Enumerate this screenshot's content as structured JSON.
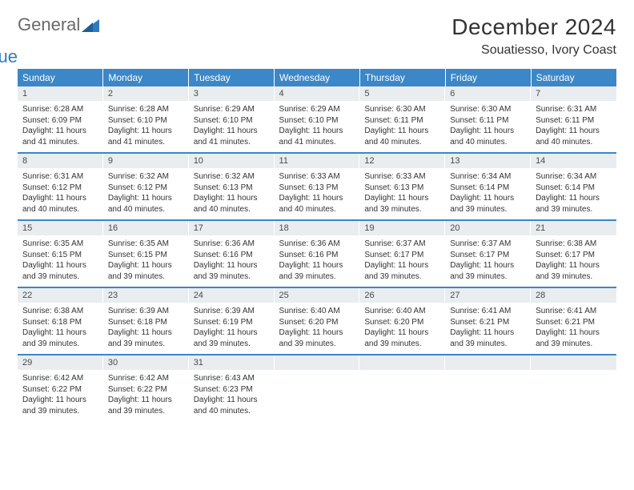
{
  "logo": {
    "word1": "General",
    "word2": "Blue",
    "tri_color": "#2f7bbf",
    "text1_color": "#6a6a6a"
  },
  "title": "December 2024",
  "location": "Souatiesso, Ivory Coast",
  "colors": {
    "header_bg": "#3b87c8",
    "header_fg": "#ffffff",
    "daynum_bg": "#e9edf0",
    "rule": "#3b87c8"
  },
  "weekdays": [
    "Sunday",
    "Monday",
    "Tuesday",
    "Wednesday",
    "Thursday",
    "Friday",
    "Saturday"
  ],
  "weeks": [
    [
      {
        "n": "1",
        "sr": "Sunrise: 6:28 AM",
        "ss": "Sunset: 6:09 PM",
        "d1": "Daylight: 11 hours",
        "d2": "and 41 minutes."
      },
      {
        "n": "2",
        "sr": "Sunrise: 6:28 AM",
        "ss": "Sunset: 6:10 PM",
        "d1": "Daylight: 11 hours",
        "d2": "and 41 minutes."
      },
      {
        "n": "3",
        "sr": "Sunrise: 6:29 AM",
        "ss": "Sunset: 6:10 PM",
        "d1": "Daylight: 11 hours",
        "d2": "and 41 minutes."
      },
      {
        "n": "4",
        "sr": "Sunrise: 6:29 AM",
        "ss": "Sunset: 6:10 PM",
        "d1": "Daylight: 11 hours",
        "d2": "and 41 minutes."
      },
      {
        "n": "5",
        "sr": "Sunrise: 6:30 AM",
        "ss": "Sunset: 6:11 PM",
        "d1": "Daylight: 11 hours",
        "d2": "and 40 minutes."
      },
      {
        "n": "6",
        "sr": "Sunrise: 6:30 AM",
        "ss": "Sunset: 6:11 PM",
        "d1": "Daylight: 11 hours",
        "d2": "and 40 minutes."
      },
      {
        "n": "7",
        "sr": "Sunrise: 6:31 AM",
        "ss": "Sunset: 6:11 PM",
        "d1": "Daylight: 11 hours",
        "d2": "and 40 minutes."
      }
    ],
    [
      {
        "n": "8",
        "sr": "Sunrise: 6:31 AM",
        "ss": "Sunset: 6:12 PM",
        "d1": "Daylight: 11 hours",
        "d2": "and 40 minutes."
      },
      {
        "n": "9",
        "sr": "Sunrise: 6:32 AM",
        "ss": "Sunset: 6:12 PM",
        "d1": "Daylight: 11 hours",
        "d2": "and 40 minutes."
      },
      {
        "n": "10",
        "sr": "Sunrise: 6:32 AM",
        "ss": "Sunset: 6:13 PM",
        "d1": "Daylight: 11 hours",
        "d2": "and 40 minutes."
      },
      {
        "n": "11",
        "sr": "Sunrise: 6:33 AM",
        "ss": "Sunset: 6:13 PM",
        "d1": "Daylight: 11 hours",
        "d2": "and 40 minutes."
      },
      {
        "n": "12",
        "sr": "Sunrise: 6:33 AM",
        "ss": "Sunset: 6:13 PM",
        "d1": "Daylight: 11 hours",
        "d2": "and 39 minutes."
      },
      {
        "n": "13",
        "sr": "Sunrise: 6:34 AM",
        "ss": "Sunset: 6:14 PM",
        "d1": "Daylight: 11 hours",
        "d2": "and 39 minutes."
      },
      {
        "n": "14",
        "sr": "Sunrise: 6:34 AM",
        "ss": "Sunset: 6:14 PM",
        "d1": "Daylight: 11 hours",
        "d2": "and 39 minutes."
      }
    ],
    [
      {
        "n": "15",
        "sr": "Sunrise: 6:35 AM",
        "ss": "Sunset: 6:15 PM",
        "d1": "Daylight: 11 hours",
        "d2": "and 39 minutes."
      },
      {
        "n": "16",
        "sr": "Sunrise: 6:35 AM",
        "ss": "Sunset: 6:15 PM",
        "d1": "Daylight: 11 hours",
        "d2": "and 39 minutes."
      },
      {
        "n": "17",
        "sr": "Sunrise: 6:36 AM",
        "ss": "Sunset: 6:16 PM",
        "d1": "Daylight: 11 hours",
        "d2": "and 39 minutes."
      },
      {
        "n": "18",
        "sr": "Sunrise: 6:36 AM",
        "ss": "Sunset: 6:16 PM",
        "d1": "Daylight: 11 hours",
        "d2": "and 39 minutes."
      },
      {
        "n": "19",
        "sr": "Sunrise: 6:37 AM",
        "ss": "Sunset: 6:17 PM",
        "d1": "Daylight: 11 hours",
        "d2": "and 39 minutes."
      },
      {
        "n": "20",
        "sr": "Sunrise: 6:37 AM",
        "ss": "Sunset: 6:17 PM",
        "d1": "Daylight: 11 hours",
        "d2": "and 39 minutes."
      },
      {
        "n": "21",
        "sr": "Sunrise: 6:38 AM",
        "ss": "Sunset: 6:17 PM",
        "d1": "Daylight: 11 hours",
        "d2": "and 39 minutes."
      }
    ],
    [
      {
        "n": "22",
        "sr": "Sunrise: 6:38 AM",
        "ss": "Sunset: 6:18 PM",
        "d1": "Daylight: 11 hours",
        "d2": "and 39 minutes."
      },
      {
        "n": "23",
        "sr": "Sunrise: 6:39 AM",
        "ss": "Sunset: 6:18 PM",
        "d1": "Daylight: 11 hours",
        "d2": "and 39 minutes."
      },
      {
        "n": "24",
        "sr": "Sunrise: 6:39 AM",
        "ss": "Sunset: 6:19 PM",
        "d1": "Daylight: 11 hours",
        "d2": "and 39 minutes."
      },
      {
        "n": "25",
        "sr": "Sunrise: 6:40 AM",
        "ss": "Sunset: 6:20 PM",
        "d1": "Daylight: 11 hours",
        "d2": "and 39 minutes."
      },
      {
        "n": "26",
        "sr": "Sunrise: 6:40 AM",
        "ss": "Sunset: 6:20 PM",
        "d1": "Daylight: 11 hours",
        "d2": "and 39 minutes."
      },
      {
        "n": "27",
        "sr": "Sunrise: 6:41 AM",
        "ss": "Sunset: 6:21 PM",
        "d1": "Daylight: 11 hours",
        "d2": "and 39 minutes."
      },
      {
        "n": "28",
        "sr": "Sunrise: 6:41 AM",
        "ss": "Sunset: 6:21 PM",
        "d1": "Daylight: 11 hours",
        "d2": "and 39 minutes."
      }
    ],
    [
      {
        "n": "29",
        "sr": "Sunrise: 6:42 AM",
        "ss": "Sunset: 6:22 PM",
        "d1": "Daylight: 11 hours",
        "d2": "and 39 minutes."
      },
      {
        "n": "30",
        "sr": "Sunrise: 6:42 AM",
        "ss": "Sunset: 6:22 PM",
        "d1": "Daylight: 11 hours",
        "d2": "and 39 minutes."
      },
      {
        "n": "31",
        "sr": "Sunrise: 6:43 AM",
        "ss": "Sunset: 6:23 PM",
        "d1": "Daylight: 11 hours",
        "d2": "and 40 minutes."
      },
      {
        "empty": true
      },
      {
        "empty": true
      },
      {
        "empty": true
      },
      {
        "empty": true
      }
    ]
  ]
}
